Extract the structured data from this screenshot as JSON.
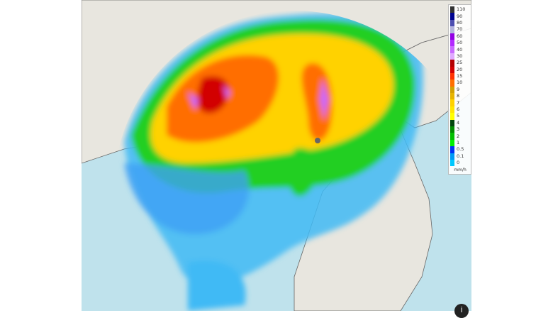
{
  "legend": {
    "unit": "mm/h",
    "levels": [
      {
        "label": "110",
        "color": "#333333"
      },
      {
        "label": "90",
        "color": "#000390"
      },
      {
        "label": "80",
        "color": "#4c4eb1"
      },
      {
        "label": "70",
        "color": "#b3b4de"
      },
      {
        "label": "60",
        "color": "#9300e4"
      },
      {
        "label": "50",
        "color": "#b329ff"
      },
      {
        "label": "40",
        "color": "#c969ff"
      },
      {
        "label": "30",
        "color": "#e0a9ff"
      },
      {
        "label": "25",
        "color": "#b40000"
      },
      {
        "label": "20",
        "color": "#d20000"
      },
      {
        "label": "15",
        "color": "#ff3200"
      },
      {
        "label": "10",
        "color": "#ff6e00"
      },
      {
        "label": "9",
        "color": "#d2a000"
      },
      {
        "label": "8",
        "color": "#e6b400"
      },
      {
        "label": "7",
        "color": "#ffd200"
      },
      {
        "label": "6",
        "color": "#ffe600"
      },
      {
        "label": "5",
        "color": "#ffff00"
      },
      {
        "label": "4",
        "color": "#00460c"
      },
      {
        "label": "3",
        "color": "#008c00"
      },
      {
        "label": "2",
        "color": "#00be00"
      },
      {
        "label": "1",
        "color": "#00f000"
      },
      {
        "label": "0.5",
        "color": "#0033f5"
      },
      {
        "label": "0.1",
        "color": "#009bf5"
      },
      {
        "label": "0",
        "color": "#00c8ff"
      }
    ]
  },
  "colors": {
    "sea": "#bfe2ec",
    "land": "#e8e6df",
    "border": "#555555"
  },
  "info_icon": "info-icon"
}
